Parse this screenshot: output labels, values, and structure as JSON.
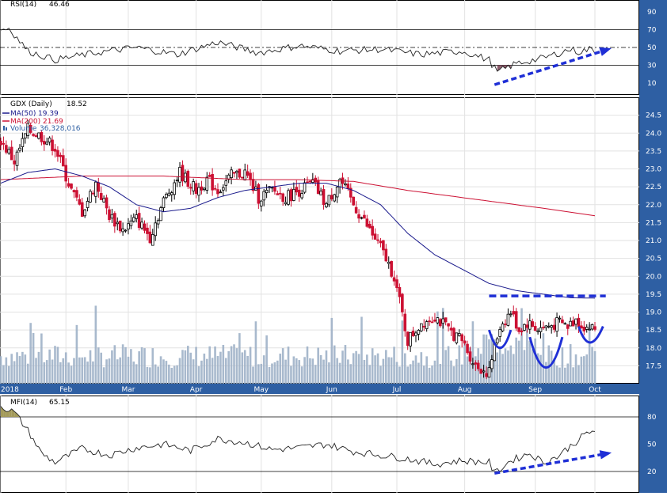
{
  "colors": {
    "axis_band": "#2e5fa3",
    "axis_text": "#ffffff",
    "up_candle": "#000000",
    "down_candle": "#cc1133",
    "ma50": "#1a1a8c",
    "ma200": "#cc1133",
    "volume": "#9fb1c8",
    "annotation": "#1f2fd6",
    "rsi_fill": "#8a5a6a",
    "mfi_fill": "#a39a5a",
    "grid": "#e2e2e2"
  },
  "chart_data": [
    {
      "type": "line",
      "panel": "rsi",
      "label_name": "RSI(14)",
      "label_value": "46.46",
      "ylim": [
        0,
        100
      ],
      "y_ticks": [
        "90",
        "70",
        "50",
        "30",
        "10"
      ],
      "reference_lines": [
        70,
        50,
        30
      ],
      "keypoints_x_day": [
        0,
        3,
        10,
        20,
        35,
        50,
        65,
        80,
        95,
        110,
        125,
        140,
        155,
        170,
        180,
        183,
        190,
        200,
        210,
        213,
        217,
        222,
        225
      ],
      "keypoints_value": [
        70,
        72,
        46,
        36,
        44,
        50,
        42,
        56,
        44,
        52,
        46,
        48,
        42,
        46,
        36,
        22,
        32,
        38,
        48,
        45,
        48,
        44,
        46.46
      ],
      "annotation": "trend-arrow-up"
    },
    {
      "type": "candlestick",
      "panel": "price",
      "legend": [
        {
          "name": "GDX (Daily)",
          "value": "18.52"
        },
        {
          "name": "MA(50)",
          "value": "19.39"
        },
        {
          "name": "MA(200)",
          "value": "21.69"
        },
        {
          "name": "Volume",
          "value": "36,328,016"
        }
      ],
      "ylim": [
        17.0,
        25.0
      ],
      "y_ticks": [
        "24.5",
        "24.0",
        "23.5",
        "23.0",
        "22.5",
        "22.0",
        "21.5",
        "21.0",
        "20.5",
        "20.0",
        "19.5",
        "19.0",
        "18.5",
        "18.0",
        "17.5"
      ],
      "x_tick_labels": [
        "2018",
        "Feb",
        "Mar",
        "Apr",
        "May",
        "Jun",
        "Jul",
        "Aug",
        "Sep",
        "Oct"
      ],
      "x_tick_days": [
        0,
        24,
        47,
        72,
        96,
        122,
        146,
        171,
        197,
        219
      ],
      "close_keypoints_day": [
        0,
        5,
        10,
        15,
        20,
        26,
        30,
        35,
        40,
        45,
        50,
        55,
        60,
        66,
        72,
        76,
        80,
        85,
        90,
        95,
        100,
        105,
        110,
        115,
        120,
        125,
        130,
        135,
        140,
        145,
        150,
        155,
        160,
        165,
        170,
        175,
        180,
        181,
        184,
        188,
        191,
        194,
        198,
        202,
        206,
        209,
        212,
        215,
        219
      ],
      "close_keypoints_value": [
        23.8,
        23.2,
        24.1,
        23.9,
        23.6,
        22.4,
        21.8,
        22.6,
        21.7,
        21.3,
        21.6,
        21.1,
        22.1,
        22.9,
        22.4,
        22.7,
        22.4,
        22.8,
        22.9,
        22.2,
        22.4,
        22.2,
        22.4,
        22.6,
        22.0,
        22.7,
        22.0,
        21.4,
        20.8,
        20.0,
        18.2,
        18.7,
        18.9,
        18.5,
        18.2,
        17.5,
        17.3,
        17.7,
        18.6,
        19.0,
        18.5,
        18.7,
        18.52,
        18.6,
        18.7,
        18.6,
        18.8,
        18.6,
        18.52
      ],
      "ma50_keypoints_day": [
        0,
        10,
        20,
        30,
        40,
        50,
        60,
        70,
        80,
        90,
        100,
        110,
        120,
        130,
        140,
        150,
        160,
        170,
        180,
        190,
        200,
        210,
        219
      ],
      "ma50_keypoints_value": [
        22.6,
        22.9,
        23.0,
        22.8,
        22.5,
        22.0,
        21.8,
        21.9,
        22.2,
        22.4,
        22.5,
        22.6,
        22.6,
        22.4,
        22.0,
        21.2,
        20.6,
        20.2,
        19.8,
        19.6,
        19.5,
        19.4,
        19.39
      ],
      "ma200_keypoints_day": [
        0,
        30,
        60,
        90,
        110,
        130,
        150,
        170,
        185,
        200,
        219
      ],
      "ma200_keypoints_value": [
        22.7,
        22.8,
        22.8,
        22.7,
        22.7,
        22.65,
        22.4,
        22.2,
        22.05,
        21.9,
        21.69
      ],
      "resistance_level": 19.45,
      "annotation": "double-bottom-arcs"
    },
    {
      "type": "line",
      "panel": "mfi",
      "label_name": "MFI(14)",
      "label_value": "65.15",
      "ylim": [
        0,
        100
      ],
      "y_ticks": [
        "80",
        "50",
        "20"
      ],
      "reference_lines": [
        80,
        20
      ],
      "keypoints_x_day": [
        0,
        5,
        10,
        15,
        20,
        30,
        40,
        50,
        60,
        70,
        80,
        90,
        100,
        110,
        120,
        130,
        140,
        150,
        160,
        170,
        180,
        182,
        188,
        195,
        200,
        205,
        210,
        216,
        219
      ],
      "keypoints_value": [
        92,
        85,
        65,
        40,
        30,
        45,
        38,
        46,
        50,
        43,
        56,
        52,
        44,
        46,
        50,
        42,
        38,
        34,
        28,
        32,
        30,
        18,
        32,
        40,
        30,
        36,
        48,
        62,
        65.15
      ],
      "annotation": "trend-arrow-up"
    }
  ]
}
